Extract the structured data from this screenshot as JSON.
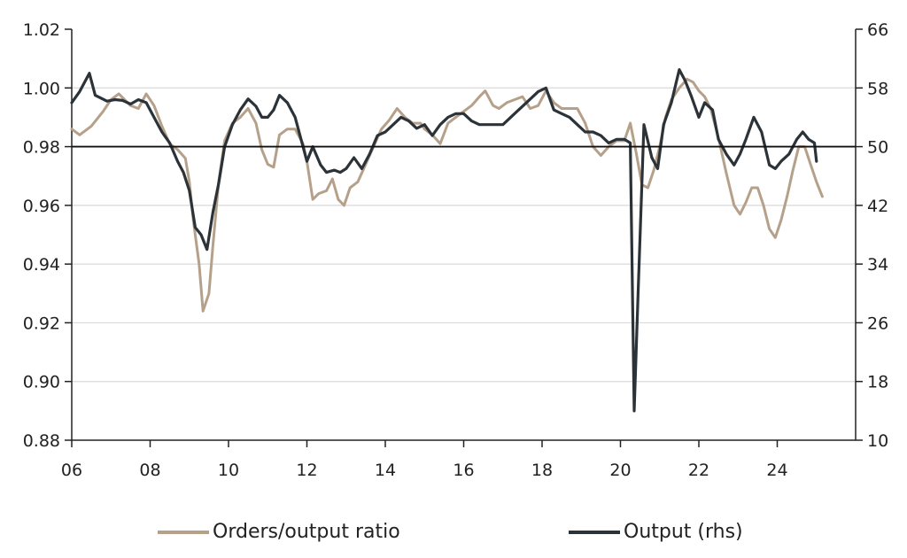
{
  "chart_data": {
    "type": "line",
    "x_tick_labels": [
      "06",
      "08",
      "10",
      "12",
      "14",
      "16",
      "18",
      "20",
      "22",
      "24"
    ],
    "x_range": [
      2006,
      2026
    ],
    "y_left": {
      "range": [
        0.88,
        1.02
      ],
      "tick_labels": [
        "1.02",
        "1.00",
        "0.98",
        "0.96",
        "0.94",
        "0.92",
        "0.90",
        "0.88"
      ]
    },
    "y_right": {
      "range": [
        10,
        66
      ],
      "tick_labels": [
        "66",
        "58",
        "50",
        "42",
        "34",
        "26",
        "18",
        "10"
      ]
    },
    "reference_line_left": 0.98,
    "grid": "horizontal",
    "legend_position": "bottom",
    "series": [
      {
        "name": "Orders/output ratio",
        "axis": "left",
        "color": "#b5a08a",
        "points": [
          [
            2006.0,
            0.986
          ],
          [
            2006.2,
            0.984
          ],
          [
            2006.5,
            0.987
          ],
          [
            2006.8,
            0.992
          ],
          [
            2007.0,
            0.996
          ],
          [
            2007.2,
            0.998
          ],
          [
            2007.5,
            0.994
          ],
          [
            2007.7,
            0.993
          ],
          [
            2007.9,
            0.998
          ],
          [
            2008.1,
            0.994
          ],
          [
            2008.3,
            0.987
          ],
          [
            2008.5,
            0.981
          ],
          [
            2008.7,
            0.979
          ],
          [
            2008.9,
            0.976
          ],
          [
            2009.0,
            0.968
          ],
          [
            2009.1,
            0.955
          ],
          [
            2009.25,
            0.94
          ],
          [
            2009.35,
            0.924
          ],
          [
            2009.5,
            0.93
          ],
          [
            2009.6,
            0.946
          ],
          [
            2009.75,
            0.968
          ],
          [
            2009.9,
            0.982
          ],
          [
            2010.1,
            0.988
          ],
          [
            2010.3,
            0.99
          ],
          [
            2010.5,
            0.993
          ],
          [
            2010.7,
            0.988
          ],
          [
            2010.85,
            0.979
          ],
          [
            2011.0,
            0.974
          ],
          [
            2011.15,
            0.973
          ],
          [
            2011.3,
            0.984
          ],
          [
            2011.5,
            0.986
          ],
          [
            2011.7,
            0.986
          ],
          [
            2011.9,
            0.981
          ],
          [
            2012.0,
            0.975
          ],
          [
            2012.15,
            0.962
          ],
          [
            2012.3,
            0.964
          ],
          [
            2012.5,
            0.965
          ],
          [
            2012.65,
            0.969
          ],
          [
            2012.8,
            0.962
          ],
          [
            2012.95,
            0.96
          ],
          [
            2013.1,
            0.966
          ],
          [
            2013.3,
            0.968
          ],
          [
            2013.5,
            0.974
          ],
          [
            2013.7,
            0.98
          ],
          [
            2013.9,
            0.986
          ],
          [
            2014.1,
            0.989
          ],
          [
            2014.3,
            0.993
          ],
          [
            2014.5,
            0.99
          ],
          [
            2014.7,
            0.988
          ],
          [
            2014.9,
            0.988
          ],
          [
            2015.0,
            0.986
          ],
          [
            2015.2,
            0.984
          ],
          [
            2015.4,
            0.981
          ],
          [
            2015.6,
            0.988
          ],
          [
            2015.8,
            0.99
          ],
          [
            2016.0,
            0.992
          ],
          [
            2016.2,
            0.994
          ],
          [
            2016.4,
            0.997
          ],
          [
            2016.55,
            0.999
          ],
          [
            2016.75,
            0.994
          ],
          [
            2016.9,
            0.993
          ],
          [
            2017.1,
            0.995
          ],
          [
            2017.3,
            0.996
          ],
          [
            2017.5,
            0.997
          ],
          [
            2017.7,
            0.993
          ],
          [
            2017.9,
            0.994
          ],
          [
            2018.1,
            0.999
          ],
          [
            2018.3,
            0.995
          ],
          [
            2018.5,
            0.993
          ],
          [
            2018.7,
            0.993
          ],
          [
            2018.9,
            0.993
          ],
          [
            2019.1,
            0.988
          ],
          [
            2019.3,
            0.98
          ],
          [
            2019.5,
            0.977
          ],
          [
            2019.7,
            0.98
          ],
          [
            2019.9,
            0.982
          ],
          [
            2020.1,
            0.982
          ],
          [
            2020.25,
            0.988
          ],
          [
            2020.4,
            0.978
          ],
          [
            2020.55,
            0.967
          ],
          [
            2020.7,
            0.966
          ],
          [
            2020.85,
            0.972
          ],
          [
            2021.0,
            0.98
          ],
          [
            2021.15,
            0.99
          ],
          [
            2021.3,
            0.996
          ],
          [
            2021.5,
            1.0
          ],
          [
            2021.7,
            1.003
          ],
          [
            2021.85,
            1.002
          ],
          [
            2022.0,
            0.999
          ],
          [
            2022.15,
            0.997
          ],
          [
            2022.3,
            0.993
          ],
          [
            2022.5,
            0.983
          ],
          [
            2022.7,
            0.971
          ],
          [
            2022.9,
            0.96
          ],
          [
            2023.05,
            0.957
          ],
          [
            2023.2,
            0.961
          ],
          [
            2023.35,
            0.966
          ],
          [
            2023.5,
            0.966
          ],
          [
            2023.65,
            0.96
          ],
          [
            2023.8,
            0.952
          ],
          [
            2023.95,
            0.949
          ],
          [
            2024.1,
            0.955
          ],
          [
            2024.25,
            0.963
          ],
          [
            2024.4,
            0.972
          ],
          [
            2024.55,
            0.98
          ],
          [
            2024.7,
            0.98
          ],
          [
            2024.85,
            0.974
          ],
          [
            2025.0,
            0.968
          ],
          [
            2025.15,
            0.963
          ]
        ]
      },
      {
        "name": "Output (rhs)",
        "axis": "right",
        "color": "#2c3338",
        "points": [
          [
            2006.0,
            56
          ],
          [
            2006.2,
            57.5
          ],
          [
            2006.45,
            60
          ],
          [
            2006.6,
            57
          ],
          [
            2006.9,
            56.2
          ],
          [
            2007.1,
            56.4
          ],
          [
            2007.3,
            56.3
          ],
          [
            2007.5,
            55.8
          ],
          [
            2007.7,
            56.4
          ],
          [
            2007.9,
            56
          ],
          [
            2008.1,
            54
          ],
          [
            2008.3,
            52
          ],
          [
            2008.5,
            50.5
          ],
          [
            2008.7,
            48
          ],
          [
            2008.85,
            46.5
          ],
          [
            2009.0,
            44
          ],
          [
            2009.15,
            39
          ],
          [
            2009.3,
            38
          ],
          [
            2009.45,
            36
          ],
          [
            2009.6,
            41
          ],
          [
            2009.75,
            45
          ],
          [
            2009.9,
            50
          ],
          [
            2010.1,
            53
          ],
          [
            2010.3,
            55
          ],
          [
            2010.5,
            56.5
          ],
          [
            2010.7,
            55.5
          ],
          [
            2010.85,
            54
          ],
          [
            2011.0,
            54
          ],
          [
            2011.15,
            55
          ],
          [
            2011.3,
            57
          ],
          [
            2011.5,
            56
          ],
          [
            2011.7,
            54
          ],
          [
            2011.85,
            51
          ],
          [
            2012.0,
            48
          ],
          [
            2012.15,
            50
          ],
          [
            2012.35,
            47.5
          ],
          [
            2012.5,
            46.5
          ],
          [
            2012.7,
            46.8
          ],
          [
            2012.85,
            46.5
          ],
          [
            2013.0,
            47
          ],
          [
            2013.2,
            48.5
          ],
          [
            2013.4,
            47
          ],
          [
            2013.6,
            49
          ],
          [
            2013.8,
            51.5
          ],
          [
            2014.0,
            52
          ],
          [
            2014.2,
            53
          ],
          [
            2014.4,
            54
          ],
          [
            2014.6,
            53.5
          ],
          [
            2014.8,
            52.5
          ],
          [
            2015.0,
            53
          ],
          [
            2015.2,
            51.5
          ],
          [
            2015.4,
            53
          ],
          [
            2015.6,
            54
          ],
          [
            2015.8,
            54.5
          ],
          [
            2016.0,
            54.5
          ],
          [
            2016.2,
            53.5
          ],
          [
            2016.4,
            53
          ],
          [
            2016.6,
            53
          ],
          [
            2016.8,
            53
          ],
          [
            2017.0,
            53
          ],
          [
            2017.3,
            54.5
          ],
          [
            2017.6,
            56
          ],
          [
            2017.9,
            57.5
          ],
          [
            2018.1,
            58
          ],
          [
            2018.3,
            55
          ],
          [
            2018.5,
            54.5
          ],
          [
            2018.7,
            54
          ],
          [
            2018.9,
            53
          ],
          [
            2019.1,
            52
          ],
          [
            2019.3,
            52
          ],
          [
            2019.5,
            51.5
          ],
          [
            2019.7,
            50.5
          ],
          [
            2019.9,
            51
          ],
          [
            2020.1,
            51
          ],
          [
            2020.25,
            50.5
          ],
          [
            2020.35,
            14
          ],
          [
            2020.45,
            30
          ],
          [
            2020.6,
            53
          ],
          [
            2020.8,
            48.5
          ],
          [
            2020.95,
            47
          ],
          [
            2021.1,
            53
          ],
          [
            2021.3,
            56
          ],
          [
            2021.5,
            60.5
          ],
          [
            2021.65,
            59
          ],
          [
            2021.8,
            57
          ],
          [
            2022.0,
            54
          ],
          [
            2022.15,
            56
          ],
          [
            2022.35,
            55
          ],
          [
            2022.5,
            51
          ],
          [
            2022.7,
            49
          ],
          [
            2022.9,
            47.5
          ],
          [
            2023.05,
            49
          ],
          [
            2023.2,
            51
          ],
          [
            2023.4,
            54
          ],
          [
            2023.6,
            52
          ],
          [
            2023.8,
            47.5
          ],
          [
            2023.95,
            47
          ],
          [
            2024.1,
            48
          ],
          [
            2024.3,
            49
          ],
          [
            2024.5,
            51
          ],
          [
            2024.65,
            52
          ],
          [
            2024.8,
            51
          ],
          [
            2024.95,
            50.5
          ],
          [
            2025.0,
            48
          ]
        ]
      }
    ]
  }
}
